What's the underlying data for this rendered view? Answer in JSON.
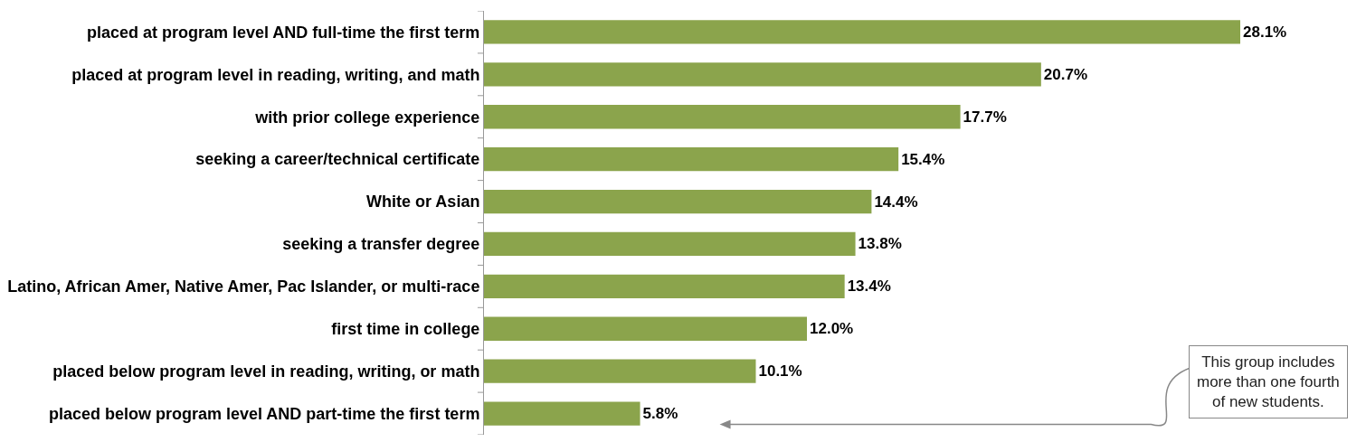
{
  "chart_data": {
    "type": "bar",
    "orientation": "horizontal",
    "categories": [
      "placed at program level AND full-time the first term",
      "placed at program level in reading, writing, and math",
      "with prior college experience",
      "seeking a career/technical certificate",
      "White or Asian",
      "seeking a transfer degree",
      "Latino, African Amer, Native Amer, Pac Islander, or multi-race",
      "first time in college",
      "placed below program level in reading, writing, or math",
      "placed below program level AND part-time the first term"
    ],
    "values": [
      28.1,
      20.7,
      17.7,
      15.4,
      14.4,
      13.8,
      13.4,
      12.0,
      10.1,
      5.8
    ],
    "value_labels": [
      "28.1%",
      "20.7%",
      "17.7%",
      "15.4%",
      "14.4%",
      "13.8%",
      "13.4%",
      "12.0%",
      "10.1%",
      "5.8%"
    ],
    "color": "#8ba44c",
    "grid": false,
    "legend": false,
    "annotations": [
      "This group includes\nmore than one fourth\nof new students."
    ]
  }
}
